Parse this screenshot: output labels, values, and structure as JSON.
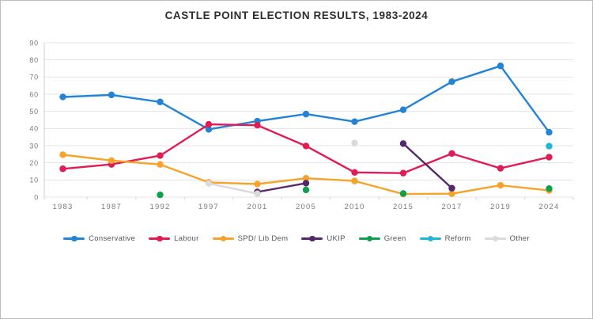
{
  "title": "CASTLE POINT ELECTION RESULTS, 1983-2024",
  "chart_data": {
    "type": "line",
    "title": "CASTLE POINT ELECTION RESULTS, 1983-2024",
    "categories": [
      "1983",
      "1987",
      "1992",
      "1997",
      "2001",
      "2005",
      "2010",
      "2015",
      "2017",
      "2019",
      "2024"
    ],
    "series": [
      {
        "name": "Conservative",
        "color": "#2383d6",
        "values": [
          58.4,
          59.6,
          55.5,
          39.5,
          44.3,
          48.4,
          44.0,
          50.9,
          67.3,
          76.5,
          37.8
        ]
      },
      {
        "name": "Labour",
        "color": "#e31b54",
        "values": [
          16.5,
          19.1,
          24.2,
          42.4,
          41.9,
          29.8,
          14.4,
          14.0,
          25.4,
          16.8,
          23.3
        ]
      },
      {
        "name": "SPD/ Lib Dem",
        "color": "#f7a32a",
        "values": [
          24.7,
          21.3,
          19.0,
          8.6,
          7.6,
          11.0,
          9.4,
          1.8,
          2.0,
          6.9,
          3.9
        ]
      },
      {
        "name": "UKIP",
        "color": "#54296b",
        "values": [
          null,
          null,
          null,
          null,
          3.0,
          8.1,
          null,
          31.2,
          5.2,
          null,
          null
        ]
      },
      {
        "name": "Green",
        "color": "#0fa04e",
        "values": [
          null,
          null,
          1.3,
          null,
          null,
          4.2,
          null,
          2.1,
          null,
          null,
          5.0
        ]
      },
      {
        "name": "Reform",
        "color": "#20b7d4",
        "values": [
          null,
          null,
          null,
          null,
          null,
          null,
          null,
          null,
          null,
          null,
          29.7
        ]
      },
      {
        "name": "Other",
        "color": "#dadada",
        "values": [
          null,
          null,
          null,
          8.0,
          2.0,
          null,
          31.5,
          null,
          null,
          null,
          null
        ]
      }
    ],
    "ylim": [
      0,
      90
    ],
    "ytick_step": 10,
    "yticks": [
      0,
      10,
      20,
      30,
      40,
      50,
      60,
      70,
      80,
      90
    ],
    "grid": "horizontal",
    "legend_position": "bottom",
    "axis_text_color": "#7b7b7b",
    "grid_color": "#e4e4e4",
    "axis_line_color": "#cfcfcf"
  }
}
